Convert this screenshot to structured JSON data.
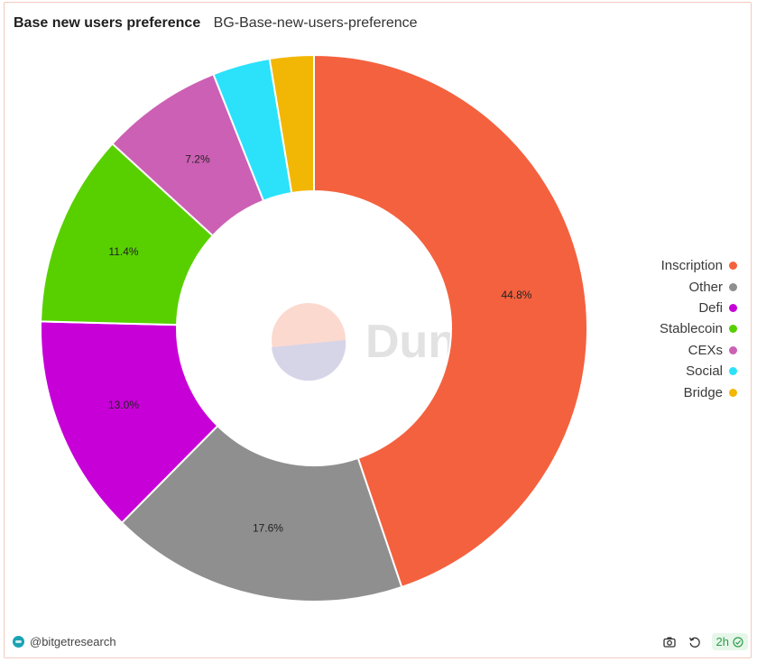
{
  "header": {
    "title": "Base new users preference",
    "subtitle": "BG-Base-new-users-preference"
  },
  "watermark": {
    "text": "Dune"
  },
  "chart_data": {
    "type": "pie",
    "donut": true,
    "legend_position": "right",
    "slices": [
      {
        "label": "Inscription",
        "value": 44.8,
        "display": "44.8%",
        "color": "#f4613f"
      },
      {
        "label": "Other",
        "value": 17.6,
        "display": "17.6%",
        "color": "#8f8f8f"
      },
      {
        "label": "Defi",
        "value": 13.0,
        "display": "13.0%",
        "color": "#c800d8"
      },
      {
        "label": "Stablecoin",
        "value": 11.4,
        "display": "11.4%",
        "color": "#58d000"
      },
      {
        "label": "CEXs",
        "value": 7.2,
        "display": "7.2%",
        "color": "#cc60b4"
      },
      {
        "label": "Social",
        "value": 3.4,
        "display": "",
        "color": "#2be2fa"
      },
      {
        "label": "Bridge",
        "value": 2.6,
        "display": "",
        "color": "#f2b705"
      }
    ]
  },
  "footer": {
    "author": "@bitgetresearch",
    "refresh_age": "2h",
    "icons": {
      "screenshot": "camera-icon",
      "refresh": "refresh-icon",
      "status": "check-circle-icon"
    }
  }
}
